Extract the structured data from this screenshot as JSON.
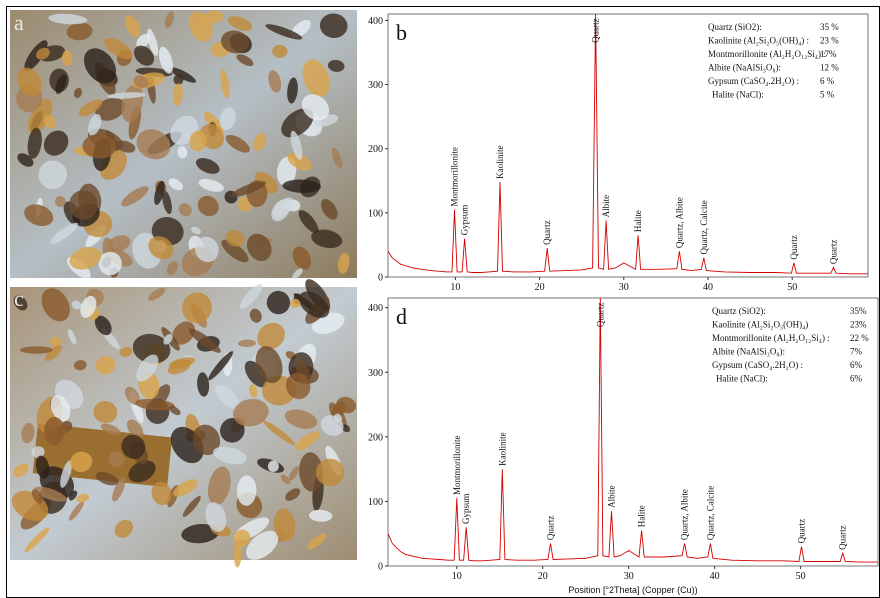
{
  "images": [
    {
      "label": "a"
    },
    {
      "label": "c"
    }
  ],
  "chart_data": [
    {
      "type": "line",
      "panel_label": "b",
      "color": "#d40000",
      "xlim": [
        2,
        59
      ],
      "ylim": [
        0,
        410
      ],
      "xticks": [
        10,
        20,
        30,
        40,
        50
      ],
      "yticks": [
        0,
        100,
        200,
        300,
        400
      ],
      "x": [
        2,
        2.5,
        3,
        3.5,
        4,
        5,
        6,
        7,
        8,
        9,
        9.6,
        9.9,
        10.2,
        10.8,
        11.1,
        11.4,
        12,
        13,
        14,
        15,
        15.3,
        15.6,
        17,
        19,
        20.6,
        20.9,
        21.2,
        23,
        25,
        26.3,
        26.65,
        27,
        27.6,
        27.9,
        28.2,
        29,
        30,
        31.4,
        31.7,
        32,
        34,
        36.3,
        36.6,
        36.9,
        38,
        39.2,
        39.5,
        39.8,
        42,
        45,
        48,
        49.9,
        50.2,
        50.5,
        53,
        54.6,
        54.9,
        55.2,
        57,
        59
      ],
      "values": [
        40,
        30,
        25,
        20,
        18,
        14,
        12,
        10,
        9,
        8,
        8,
        105,
        8,
        8,
        60,
        8,
        7,
        7,
        8,
        9,
        148,
        9,
        8,
        8,
        9,
        45,
        9,
        10,
        11,
        14,
        410,
        14,
        12,
        88,
        12,
        14,
        22,
        12,
        65,
        12,
        12,
        13,
        40,
        12,
        10,
        12,
        30,
        10,
        8,
        7,
        7,
        6,
        22,
        6,
        6,
        6,
        15,
        6,
        5,
        5
      ],
      "annotations": [
        {
          "text": "Montmorillonite",
          "x": 9.9,
          "y": 110
        },
        {
          "text": "Gypsum",
          "x": 11.1,
          "y": 65
        },
        {
          "text": "Kaolinite",
          "x": 15.3,
          "y": 153
        },
        {
          "text": "Quartz",
          "x": 20.9,
          "y": 50
        },
        {
          "text": "Quartz",
          "x": 26.65,
          "y": 365
        },
        {
          "text": "Albite",
          "x": 27.9,
          "y": 93
        },
        {
          "text": "Halite",
          "x": 31.7,
          "y": 70
        },
        {
          "text": "Quartz, Albite",
          "x": 36.6,
          "y": 45
        },
        {
          "text": "Quartz, Calcite",
          "x": 39.5,
          "y": 35
        },
        {
          "text": "Quartz",
          "x": 50.2,
          "y": 27
        },
        {
          "text": "Quartz",
          "x": 54.9,
          "y": 20
        }
      ],
      "composition": [
        {
          "mineral": "Quartz (SiO2):",
          "percent": "35 %"
        },
        {
          "mineral": "Kaolinite (Al₂Si₂O₅(OH)₄) :",
          "percent": "23 %"
        },
        {
          "mineral": "Montmorillonite (Al₂H₂O₁₂Si₄) :",
          "percent": "17%"
        },
        {
          "mineral": "Albite (NaAlSi₃O₈):",
          "percent": "12 %"
        },
        {
          "mineral": "Gypsum (CaSO₄.2H₂O) :",
          "percent": "6 %"
        },
        {
          "mineral": "Halite (NaCl):",
          "percent": "5 %"
        }
      ]
    },
    {
      "type": "line",
      "panel_label": "d",
      "color": "#d40000",
      "xlim": [
        2,
        59
      ],
      "ylim": [
        0,
        415
      ],
      "xticks": [
        10,
        20,
        30,
        40,
        50
      ],
      "yticks": [
        0,
        100,
        200,
        300,
        400
      ],
      "x_label": "Position [°2Theta] (Copper (Cu))",
      "x": [
        2,
        2.5,
        3,
        3.5,
        4,
        5,
        6,
        7,
        8,
        9,
        9.7,
        10,
        10.3,
        10.8,
        11.1,
        11.4,
        12,
        13,
        14,
        15,
        15.3,
        15.6,
        17,
        19,
        20.6,
        20.9,
        21.2,
        23,
        25,
        26.4,
        26.7,
        27,
        27.7,
        28,
        28.3,
        29,
        30,
        31.2,
        31.5,
        31.8,
        34,
        36.2,
        36.5,
        36.8,
        38,
        39.2,
        39.5,
        39.8,
        42,
        45,
        48,
        49.8,
        50.1,
        50.4,
        53,
        54.6,
        54.9,
        55.2,
        57,
        59
      ],
      "values": [
        50,
        35,
        28,
        22,
        18,
        15,
        12,
        11,
        10,
        9,
        9,
        105,
        9,
        9,
        60,
        9,
        8,
        8,
        9,
        10,
        150,
        10,
        9,
        9,
        10,
        35,
        10,
        11,
        12,
        16,
        415,
        16,
        14,
        85,
        14,
        16,
        24,
        14,
        55,
        14,
        14,
        16,
        35,
        14,
        12,
        14,
        35,
        12,
        9,
        8,
        8,
        7,
        30,
        7,
        7,
        7,
        20,
        7,
        6,
        6
      ],
      "annotations": [
        {
          "text": "Montmorillonite",
          "x": 10,
          "y": 110
        },
        {
          "text": "Gypsum",
          "x": 11.1,
          "y": 65
        },
        {
          "text": "Kaolinite",
          "x": 15.3,
          "y": 155
        },
        {
          "text": "Quartz",
          "x": 20.9,
          "y": 40
        },
        {
          "text": "Quartz",
          "x": 26.7,
          "y": 370
        },
        {
          "text": "Albite",
          "x": 28,
          "y": 90
        },
        {
          "text": "Halite",
          "x": 31.5,
          "y": 60
        },
        {
          "text": "Quartz, Albite",
          "x": 36.5,
          "y": 40
        },
        {
          "text": "Quartz, Calcite",
          "x": 39.5,
          "y": 40
        },
        {
          "text": "Quartz",
          "x": 50.1,
          "y": 35
        },
        {
          "text": "Quartz",
          "x": 54.9,
          "y": 25
        }
      ],
      "composition": [
        {
          "mineral": "Quartz (SiO2):",
          "percent": "35%"
        },
        {
          "mineral": "Kaolinite (Al₂Si₂O₅(OH)₄)",
          "percent": "23%"
        },
        {
          "mineral": "Montmorillonite (Al₂H₂O₁₂Si₄) :",
          "percent": "22 %"
        },
        {
          "mineral": "Albite (NaAlSi₃O₈):",
          "percent": "7%"
        },
        {
          "mineral": "Gypsum (CaSO₄.2H₂O) :",
          "percent": "6%"
        },
        {
          "mineral": "Halite (NaCl):",
          "percent": "6%"
        }
      ]
    }
  ]
}
